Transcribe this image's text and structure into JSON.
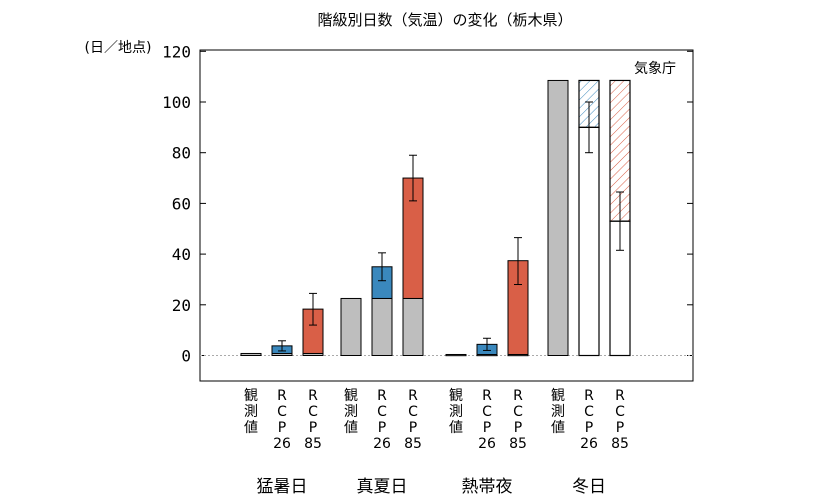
{
  "chart_data": {
    "type": "bar",
    "title": "階級別日数（気温）の変化（栃木県）",
    "ylabel": "(日／地点)",
    "ylim": [
      -10,
      120
    ],
    "yticks": [
      0,
      20,
      40,
      60,
      80,
      100,
      120
    ],
    "source_label": "気象庁",
    "bar_labels": {
      "obs": [
        "観",
        "測",
        "値"
      ],
      "rcp26": [
        "R",
        "C",
        "P",
        "26"
      ],
      "rcp85": [
        "R",
        "C",
        "P",
        "85"
      ]
    },
    "groups": [
      {
        "name": "猛暑日",
        "bars": [
          {
            "kind": "obs",
            "base": 0.8,
            "change": 0,
            "err": [
              0.8,
              0.8
            ]
          },
          {
            "kind": "rcp26",
            "base": 0.8,
            "change": 3.0,
            "err": [
              1.8,
              5.8
            ]
          },
          {
            "kind": "rcp85",
            "base": 0.8,
            "change": 17.5,
            "err": [
              12.0,
              24.5
            ]
          }
        ]
      },
      {
        "name": "真夏日",
        "bars": [
          {
            "kind": "obs",
            "base": 22.5,
            "change": 0,
            "err": [
              22.5,
              22.5
            ]
          },
          {
            "kind": "rcp26",
            "base": 22.5,
            "change": 12.5,
            "err": [
              29.5,
              40.5
            ]
          },
          {
            "kind": "rcp85",
            "base": 22.5,
            "change": 47.5,
            "err": [
              61.0,
              79.0
            ]
          }
        ]
      },
      {
        "name": "熱帯夜",
        "bars": [
          {
            "kind": "obs",
            "base": 0.4,
            "change": 0,
            "err": [
              0.4,
              0.4
            ]
          },
          {
            "kind": "rcp26",
            "base": 0.4,
            "change": 4.0,
            "err": [
              2.0,
              6.8
            ]
          },
          {
            "kind": "rcp85",
            "base": 0.4,
            "change": 37.0,
            "err": [
              28.0,
              46.5
            ]
          }
        ]
      },
      {
        "name": "冬日",
        "bars": [
          {
            "kind": "obs",
            "base": 108.5,
            "change": 0,
            "err": [
              108.5,
              108.5
            ]
          },
          {
            "kind": "rcp26",
            "base": 108.5,
            "change": -18.5,
            "err": [
              80.0,
              100.0
            ]
          },
          {
            "kind": "rcp85",
            "base": 108.5,
            "change": -55.5,
            "err": [
              41.5,
              64.5
            ]
          }
        ]
      }
    ],
    "colors": {
      "obs": "#bebebe",
      "rcp26": "#3a88bd",
      "rcp85": "#d95f47",
      "zero_line": "#aaaaaa"
    }
  }
}
